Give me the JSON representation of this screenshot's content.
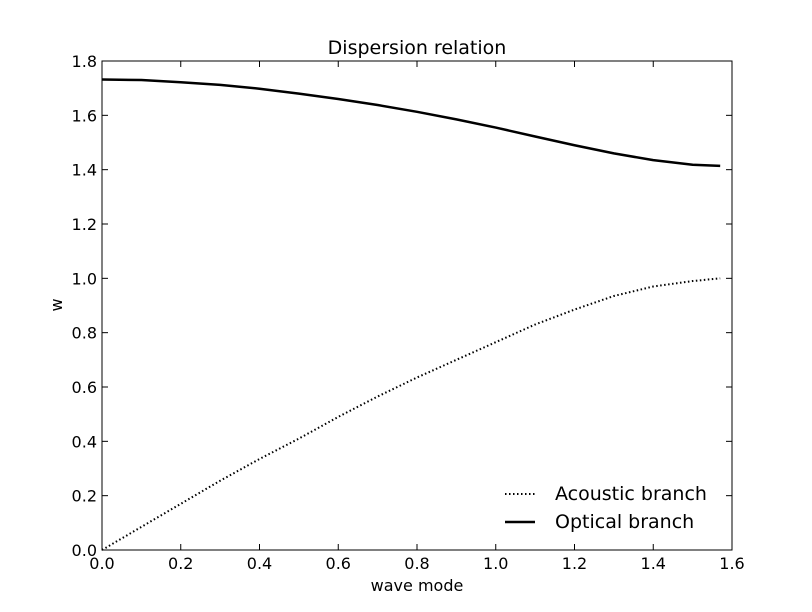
{
  "chart_data": {
    "type": "line",
    "title": "Dispersion relation",
    "xlabel": "wave mode",
    "ylabel": "w",
    "xlim": [
      0.0,
      1.6
    ],
    "ylim": [
      0.0,
      1.8
    ],
    "xticks": [
      "0.0",
      "0.2",
      "0.4",
      "0.6",
      "0.8",
      "1.0",
      "1.2",
      "1.4",
      "1.6"
    ],
    "yticks": [
      "0.0",
      "0.2",
      "0.4",
      "0.6",
      "0.8",
      "1.0",
      "1.2",
      "1.4",
      "1.6",
      "1.8"
    ],
    "grid": false,
    "legend_position": "bottom-right",
    "series": [
      {
        "name": "Acoustic branch",
        "line_style": "dotted",
        "color": "#000000",
        "x": [
          0.0,
          0.1,
          0.2,
          0.3,
          0.4,
          0.5,
          0.6,
          0.7,
          0.8,
          0.9,
          1.0,
          1.1,
          1.2,
          1.3,
          1.4,
          1.5,
          1.57
        ],
        "y": [
          0.0,
          0.085,
          0.17,
          0.255,
          0.335,
          0.41,
          0.49,
          0.565,
          0.635,
          0.7,
          0.765,
          0.83,
          0.885,
          0.935,
          0.97,
          0.99,
          1.0
        ]
      },
      {
        "name": "Optical branch",
        "line_style": "solid",
        "color": "#000000",
        "x": [
          0.0,
          0.1,
          0.2,
          0.3,
          0.4,
          0.5,
          0.6,
          0.7,
          0.8,
          0.9,
          1.0,
          1.1,
          1.2,
          1.3,
          1.4,
          1.5,
          1.57
        ],
        "y": [
          1.732,
          1.73,
          1.722,
          1.712,
          1.698,
          1.68,
          1.66,
          1.638,
          1.613,
          1.585,
          1.555,
          1.522,
          1.49,
          1.46,
          1.435,
          1.418,
          1.414
        ]
      }
    ]
  }
}
